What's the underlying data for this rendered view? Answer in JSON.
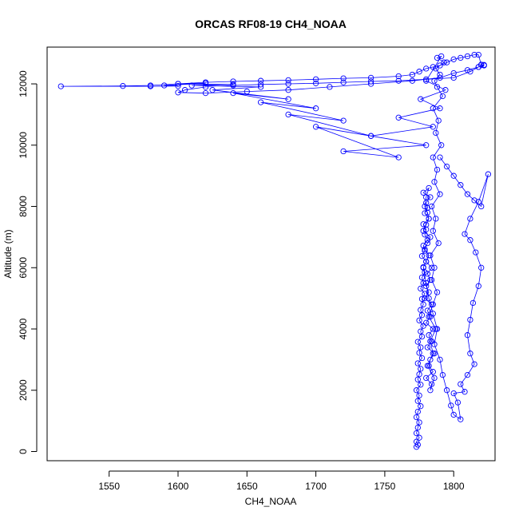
{
  "chart_data": {
    "type": "line",
    "title": "ORCAS RF08-19 CH4_NOAA",
    "xlabel": "CH4_NOAA",
    "ylabel": "Altitude (m)",
    "xlim": [
      1505,
      1830
    ],
    "ylim": [
      -300,
      13200
    ],
    "x_ticks": [
      1550,
      1600,
      1650,
      1700,
      1750,
      1800
    ],
    "y_ticks": [
      0,
      2000,
      4000,
      6000,
      8000,
      10000,
      12000
    ],
    "marker": "open-circle",
    "grid": false,
    "legend": "none",
    "colors": {
      "series": "#0000ff",
      "axis": "#000000"
    },
    "series": [
      {
        "x": [
          1773,
          1774,
          1773,
          1775,
          1773,
          1774,
          1775,
          1773,
          1774,
          1776,
          1774,
          1775,
          1773,
          1776,
          1774,
          1775,
          1776,
          1774,
          1777,
          1775,
          1776,
          1774,
          1777,
          1776,
          1778,
          1775,
          1777,
          1776,
          1778,
          1777,
          1779,
          1776,
          1778,
          1777,
          1779,
          1778,
          1780,
          1777,
          1779,
          1778,
          1781,
          1779,
          1780,
          1778,
          1782,
          1779,
          1781,
          1780,
          1783,
          1778,
          1782,
          1780,
          1779,
          1781,
          1782,
          1780,
          1778,
          1783,
          1781,
          1779,
          1782,
          1780,
          1784,
          1781,
          1783,
          1780,
          1782,
          1779,
          1784,
          1781,
          1783,
          1780,
          1785,
          1782,
          1784,
          1781,
          1786,
          1783,
          1782,
          1785,
          1780,
          1784,
          1783,
          1786,
          1781,
          1785,
          1783,
          1787,
          1782,
          1785,
          1788,
          1784,
          1786,
          1783,
          1789,
          1785,
          1787,
          1784,
          1790,
          1786,
          1788,
          1785,
          1791,
          1787,
          1789,
          1785,
          1792,
          1788,
          1786,
          1790,
          1787,
          1793,
          1788,
          1791,
          1780,
          1794,
          1776,
          1790,
          1760,
          1785,
          1740,
          1780,
          1720,
          1760,
          1700,
          1740,
          1680,
          1720,
          1660,
          1700,
          1640,
          1680,
          1625,
          1660,
          1610,
          1640,
          1600,
          1620,
          1590,
          1600,
          1580,
          1515,
          1560,
          1580,
          1600,
          1620,
          1640,
          1660,
          1680,
          1700,
          1720,
          1740,
          1760,
          1770,
          1775,
          1780,
          1785,
          1790,
          1795,
          1800,
          1805,
          1810,
          1815,
          1818,
          1820,
          1822,
          1818,
          1812,
          1800,
          1780,
          1760,
          1740,
          1720,
          1700,
          1680,
          1660,
          1640,
          1620,
          1605,
          1600,
          1620,
          1650,
          1680,
          1710,
          1740,
          1770,
          1790,
          1800,
          1810,
          1818,
          1822,
          1820
        ],
        "y": [
          150,
          220,
          320,
          450,
          600,
          780,
          950,
          1120,
          1300,
          1480,
          1650,
          1830,
          2000,
          2180,
          2350,
          2520,
          2700,
          2880,
          3050,
          3220,
          3400,
          3580,
          3750,
          3920,
          4100,
          4280,
          4450,
          4620,
          4800,
          4980,
          5150,
          5320,
          5500,
          5680,
          5850,
          6020,
          6200,
          6380,
          6550,
          6720,
          6900,
          7080,
          7250,
          7420,
          7600,
          7780,
          7950,
          8120,
          8300,
          8450,
          8600,
          8300,
          8000,
          7800,
          7600,
          7400,
          7200,
          7000,
          6800,
          6600,
          6400,
          6200,
          6000,
          5800,
          5600,
          5400,
          5200,
          5000,
          4800,
          4600,
          4400,
          4200,
          4000,
          3800,
          3600,
          3400,
          3200,
          3000,
          2800,
          2600,
          2400,
          2200,
          2000,
          2400,
          2800,
          3200,
          3600,
          4000,
          4400,
          4800,
          5200,
          5600,
          6000,
          6400,
          6800,
          7200,
          7600,
          8000,
          8400,
          8800,
          9200,
          9600,
          10000,
          10400,
          10800,
          11200,
          11600,
          11900,
          12100,
          12300,
          12500,
          12700,
          12850,
          12900,
          12100,
          11800,
          11500,
          11200,
          10900,
          10600,
          10300,
          10000,
          9800,
          9600,
          10600,
          10300,
          11000,
          10800,
          11400,
          11200,
          11700,
          11500,
          11800,
          11900,
          11950,
          11980,
          12000,
          12020,
          11950,
          11930,
          11920,
          11920,
          11930,
          11950,
          12000,
          12050,
          12080,
          12100,
          12120,
          12150,
          12180,
          12200,
          12250,
          12300,
          12400,
          12500,
          12550,
          12600,
          12700,
          12800,
          12850,
          12900,
          12950,
          12950,
          12620,
          12600,
          12550,
          12400,
          12200,
          12150,
          12100,
          12080,
          12050,
          12020,
          12000,
          11980,
          11950,
          11900,
          11800,
          11720,
          11700,
          11750,
          11800,
          11900,
          12000,
          12100,
          12200,
          12350,
          12450,
          12550,
          12620,
          12630
        ]
      },
      {
        "x": [
          1790,
          1795,
          1800,
          1805,
          1810,
          1815,
          1820,
          1825,
          1818,
          1812,
          1808,
          1812,
          1816,
          1820,
          1818,
          1814,
          1812,
          1810,
          1812,
          1815,
          1810,
          1805,
          1808,
          1800,
          1803,
          1805,
          1800,
          1798,
          1795,
          1792,
          1790,
          1786,
          1788,
          1785,
          1782,
          1780,
          1778
        ],
        "y": [
          9600,
          9300,
          9000,
          8700,
          8400,
          8200,
          8000,
          9050,
          8150,
          7600,
          7100,
          6900,
          6500,
          6000,
          5400,
          4850,
          4300,
          3800,
          3200,
          2850,
          2500,
          2200,
          1950,
          1900,
          1600,
          1050,
          1200,
          1500,
          2000,
          2500,
          3000,
          3500,
          4000,
          4500,
          5000,
          5500,
          6000
        ]
      }
    ]
  }
}
